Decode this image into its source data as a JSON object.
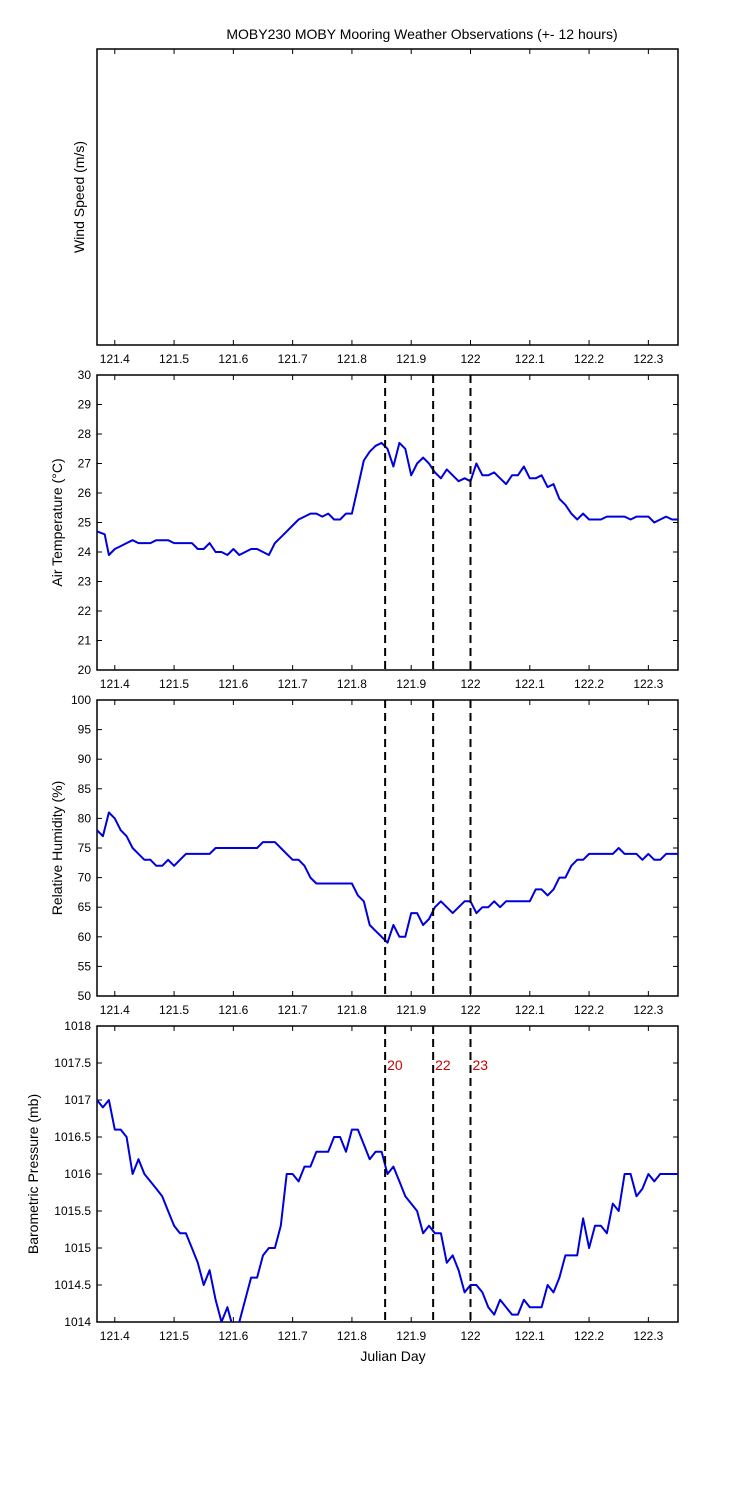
{
  "figure": {
    "title": "MOBY230 MOBY Mooring Weather Observations (+- 12 hours)",
    "xlabel": "Julian Day",
    "series_color": "#0000dd",
    "marker_color": "#000000",
    "marker_label_color": "#cc0000"
  },
  "chart_data": [
    {
      "type": "line",
      "ylabel": "Wind Speed (m/s)",
      "xlim": [
        121.37,
        122.35
      ],
      "ylim": null,
      "yticks": [],
      "xticks": [
        121.4,
        121.5,
        121.6,
        121.7,
        121.8,
        121.9,
        122,
        122.1,
        122.2,
        122.3
      ],
      "grid": false,
      "series": [],
      "vlines": [],
      "vline_labels": []
    },
    {
      "type": "line",
      "ylabel": "Air Temperature (°C)",
      "xlim": [
        121.37,
        122.35
      ],
      "ylim": [
        20,
        30
      ],
      "yticks": [
        20,
        21,
        22,
        23,
        24,
        25,
        26,
        27,
        28,
        29,
        30
      ],
      "xticks": [
        121.4,
        121.5,
        121.6,
        121.7,
        121.8,
        121.9,
        122,
        122.1,
        122.2,
        122.3
      ],
      "grid": false,
      "series": [
        {
          "x": [
            121.37,
            121.383,
            121.39,
            121.4,
            121.41,
            121.42,
            121.43,
            121.44,
            121.46,
            121.47,
            121.48,
            121.49,
            121.5,
            121.51,
            121.52,
            121.53,
            121.54,
            121.55,
            121.56,
            121.57,
            121.58,
            121.59,
            121.6,
            121.61,
            121.62,
            121.63,
            121.64,
            121.65,
            121.66,
            121.67,
            121.68,
            121.69,
            121.7,
            121.71,
            121.72,
            121.73,
            121.74,
            121.75,
            121.76,
            121.77,
            121.78,
            121.79,
            121.8,
            121.81,
            121.82,
            121.83,
            121.84,
            121.85,
            121.86,
            121.87,
            121.88,
            121.89,
            121.9,
            121.91,
            121.92,
            121.93,
            121.94,
            121.95,
            121.96,
            121.97,
            121.98,
            121.99,
            122.0,
            122.01,
            122.02,
            122.03,
            122.04,
            122.05,
            122.06,
            122.07,
            122.08,
            122.09,
            122.1,
            122.11,
            122.12,
            122.13,
            122.14,
            122.15,
            122.16,
            122.17,
            122.18,
            122.19,
            122.2,
            122.21,
            122.22,
            122.23,
            122.24,
            122.25,
            122.26,
            122.27,
            122.28,
            122.29,
            122.3,
            122.31,
            122.32,
            122.33,
            122.34,
            122.35
          ],
          "y": [
            24.7,
            24.6,
            23.9,
            24.1,
            24.2,
            24.3,
            24.4,
            24.3,
            24.3,
            24.4,
            24.4,
            24.4,
            24.3,
            24.3,
            24.3,
            24.3,
            24.1,
            24.1,
            24.3,
            24.0,
            24.0,
            23.9,
            24.1,
            23.9,
            24.0,
            24.1,
            24.1,
            24.0,
            23.9,
            24.3,
            24.5,
            24.7,
            24.9,
            25.1,
            25.2,
            25.3,
            25.3,
            25.2,
            25.3,
            25.1,
            25.1,
            25.3,
            25.3,
            26.2,
            27.1,
            27.4,
            27.6,
            27.7,
            27.5,
            26.9,
            27.7,
            27.5,
            26.6,
            27.0,
            27.2,
            27.0,
            26.7,
            26.5,
            26.8,
            26.6,
            26.4,
            26.5,
            26.4,
            27.0,
            26.6,
            26.6,
            26.7,
            26.5,
            26.3,
            26.6,
            26.6,
            26.9,
            26.5,
            26.5,
            26.6,
            26.2,
            26.3,
            25.8,
            25.6,
            25.3,
            25.1,
            25.3,
            25.1,
            25.1,
            25.1,
            25.2,
            25.2,
            25.2,
            25.2,
            25.1,
            25.2,
            25.2,
            25.2,
            25.0,
            25.1,
            25.2,
            25.1,
            25.1
          ]
        }
      ],
      "vlines": [
        121.856,
        121.937,
        122.0
      ],
      "vline_labels": []
    },
    {
      "type": "line",
      "ylabel": "Relative Humidity (%)",
      "xlim": [
        121.37,
        122.35
      ],
      "ylim": [
        50,
        100
      ],
      "yticks": [
        50,
        55,
        60,
        65,
        70,
        75,
        80,
        85,
        90,
        95,
        100
      ],
      "xticks": [
        121.4,
        121.5,
        121.6,
        121.7,
        121.8,
        121.9,
        122,
        122.1,
        122.2,
        122.3
      ],
      "grid": false,
      "series": [
        {
          "x": [
            121.37,
            121.38,
            121.39,
            121.4,
            121.41,
            121.42,
            121.43,
            121.44,
            121.45,
            121.46,
            121.47,
            121.48,
            121.49,
            121.5,
            121.51,
            121.52,
            121.53,
            121.54,
            121.55,
            121.56,
            121.57,
            121.58,
            121.59,
            121.6,
            121.61,
            121.62,
            121.63,
            121.64,
            121.65,
            121.66,
            121.67,
            121.68,
            121.69,
            121.7,
            121.71,
            121.72,
            121.73,
            121.74,
            121.75,
            121.76,
            121.77,
            121.78,
            121.79,
            121.8,
            121.81,
            121.82,
            121.83,
            121.84,
            121.85,
            121.86,
            121.87,
            121.88,
            121.89,
            121.9,
            121.91,
            121.92,
            121.93,
            121.94,
            121.95,
            121.96,
            121.97,
            121.98,
            121.99,
            122.0,
            122.01,
            122.02,
            122.03,
            122.04,
            122.05,
            122.06,
            122.07,
            122.08,
            122.09,
            122.1,
            122.11,
            122.12,
            122.13,
            122.14,
            122.15,
            122.16,
            122.17,
            122.18,
            122.19,
            122.2,
            122.21,
            122.22,
            122.23,
            122.24,
            122.25,
            122.26,
            122.27,
            122.28,
            122.29,
            122.3,
            122.31,
            122.32,
            122.33,
            122.34,
            122.35
          ],
          "y": [
            78,
            77,
            81,
            80,
            78,
            77,
            75,
            74,
            73,
            73,
            72,
            72,
            73,
            72,
            73,
            74,
            74,
            74,
            74,
            74,
            75,
            75,
            75,
            75,
            75,
            75,
            75,
            75,
            76,
            76,
            76,
            75,
            74,
            73,
            73,
            72,
            70,
            69,
            69,
            69,
            69,
            69,
            69,
            69,
            67,
            66,
            62,
            61,
            60,
            59,
            62,
            60,
            60,
            64,
            64,
            62,
            63,
            65,
            66,
            65,
            64,
            65,
            66,
            66,
            64,
            65,
            65,
            66,
            65,
            66,
            66,
            66,
            66,
            66,
            68,
            68,
            67,
            68,
            70,
            70,
            72,
            73,
            73,
            74,
            74,
            74,
            74,
            74,
            75,
            74,
            74,
            74,
            73,
            74,
            73,
            73,
            74,
            74,
            74
          ],
          "x_last": null
        }
      ],
      "vlines": [
        121.856,
        121.937,
        122.0
      ],
      "vline_labels": []
    },
    {
      "type": "line",
      "ylabel": "Barometric Pressure (mb)",
      "xlim": [
        121.37,
        122.35
      ],
      "ylim": [
        1014,
        1018
      ],
      "yticks": [
        1014,
        1014.5,
        1015,
        1015.5,
        1016,
        1016.5,
        1017,
        1017.5,
        1018
      ],
      "xticks": [
        121.4,
        121.5,
        121.6,
        121.7,
        121.8,
        121.9,
        122,
        122.1,
        122.2,
        122.3
      ],
      "grid": false,
      "series": [
        {
          "x": [
            121.37,
            121.38,
            121.39,
            121.4,
            121.41,
            121.42,
            121.43,
            121.44,
            121.45,
            121.46,
            121.47,
            121.48,
            121.49,
            121.5,
            121.51,
            121.52,
            121.53,
            121.54,
            121.55,
            121.56,
            121.57,
            121.58,
            121.59,
            121.6,
            121.61,
            121.62,
            121.63,
            121.64,
            121.65,
            121.66,
            121.67,
            121.68,
            121.69,
            121.7,
            121.71,
            121.72,
            121.73,
            121.74,
            121.75,
            121.76,
            121.77,
            121.78,
            121.79,
            121.8,
            121.81,
            121.82,
            121.83,
            121.84,
            121.85,
            121.86,
            121.87,
            121.88,
            121.89,
            121.9,
            121.91,
            121.92,
            121.93,
            121.94,
            121.95,
            121.96,
            121.97,
            121.98,
            121.99,
            122.0,
            122.01,
            122.02,
            122.03,
            122.04,
            122.05,
            122.06,
            122.07,
            122.08,
            122.09,
            122.1,
            122.11,
            122.12,
            122.13,
            122.14,
            122.15,
            122.16,
            122.17,
            122.18,
            122.19,
            122.2,
            122.21,
            122.22,
            122.23,
            122.24,
            122.25,
            122.26,
            122.27,
            122.28,
            122.29,
            122.3,
            122.31,
            122.32,
            122.33,
            122.34,
            122.35
          ],
          "y": [
            1017.0,
            1016.9,
            1017.0,
            1016.6,
            1016.6,
            1016.5,
            1016.0,
            1016.2,
            1016.0,
            1015.9,
            1015.8,
            1015.7,
            1015.5,
            1015.3,
            1015.2,
            1015.2,
            1015.0,
            1014.8,
            1014.5,
            1014.7,
            1014.3,
            1014.0,
            1014.2,
            1013.9,
            1014.0,
            1014.3,
            1014.6,
            1014.6,
            1014.9,
            1015.0,
            1015.0,
            1015.3,
            1016.0,
            1016.0,
            1015.9,
            1016.1,
            1016.1,
            1016.3,
            1016.3,
            1016.3,
            1016.5,
            1016.5,
            1016.3,
            1016.6,
            1016.6,
            1016.4,
            1016.2,
            1016.3,
            1016.3,
            1016.0,
            1016.1,
            1015.9,
            1015.7,
            1015.6,
            1015.5,
            1015.2,
            1015.3,
            1015.2,
            1015.2,
            1014.8,
            1014.9,
            1014.7,
            1014.4,
            1014.5,
            1014.5,
            1014.4,
            1014.2,
            1014.1,
            1014.3,
            1014.2,
            1014.1,
            1014.1,
            1014.3,
            1014.2,
            1014.2,
            1014.2,
            1014.5,
            1014.4,
            1014.6,
            1014.9,
            1014.9,
            1014.9,
            1015.4,
            1015.0,
            1015.3,
            1015.3,
            1015.2,
            1015.6,
            1015.5,
            1016.0,
            1016.0,
            1015.7,
            1015.8,
            1016.0,
            1015.9,
            1016.0,
            1016.0,
            1016.0,
            1016.0
          ],
          "x_last": null
        }
      ],
      "vlines": [
        121.856,
        121.937,
        122.0
      ],
      "vline_labels": [
        "20",
        "22",
        "23"
      ]
    }
  ]
}
